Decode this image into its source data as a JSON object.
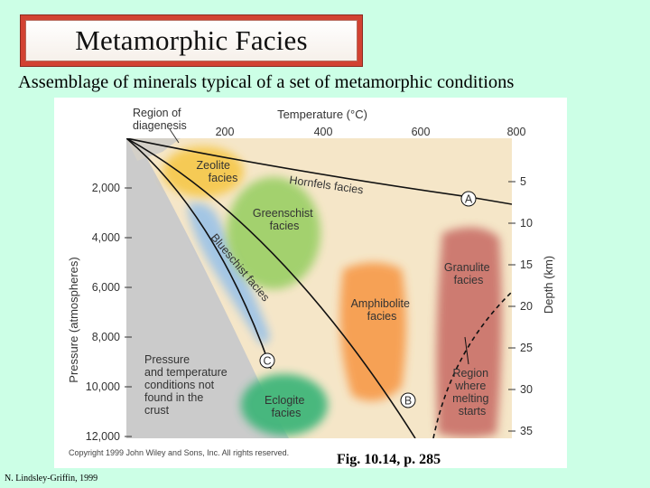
{
  "slide": {
    "title": "Metamorphic Facies",
    "subtitle": "Assemblage of minerals typical of a set of metamorphic conditions",
    "figure_caption": "Fig. 10.14, p. 285",
    "credit": "N. Lindsley-Griffin, 1999"
  },
  "diagram": {
    "top_axis_title": "Temperature (°C)",
    "top_ticks": [
      "200",
      "400",
      "600",
      "800"
    ],
    "left_axis_title": "Pressure (atmospheres)",
    "left_ticks": [
      "2,000",
      "4,000",
      "6,000",
      "8,000",
      "10,000",
      "12,000"
    ],
    "right_axis_title": "Depth (km)",
    "right_ticks": [
      "5",
      "10",
      "15",
      "20",
      "25",
      "30",
      "35"
    ],
    "region_diagenesis": [
      "Region of",
      "diagenesis"
    ],
    "zeolite": [
      "Zeolite",
      "facies"
    ],
    "hornfels": "Hornfels facies",
    "greenschist": [
      "Greenschist",
      "facies"
    ],
    "blueschist": "Blueschist facies",
    "amphibolite": [
      "Amphibolite",
      "facies"
    ],
    "granulite": [
      "Granulite",
      "facies"
    ],
    "eclogite": [
      "Eclogite",
      "facies"
    ],
    "not_found": [
      "Pressure",
      "and temperature",
      "conditions not",
      "found in the",
      "crust"
    ],
    "melting": [
      "Region",
      "where",
      "melting",
      "starts"
    ],
    "marker_a": "A",
    "marker_b": "B",
    "marker_c": "C",
    "copyright": "Copyright 1999 John Wiley and Sons, Inc. All rights reserved.",
    "colors": {
      "zeolite": "#f6c84a",
      "greenschist": "#9fd06a",
      "blueschist": "#9fc4e6",
      "amphibolite": "#f79a4a",
      "granulite": "#c97068",
      "eclogite": "#3fb67a",
      "background": "#f5e6c8",
      "not_found": "#cbcbcb"
    }
  }
}
